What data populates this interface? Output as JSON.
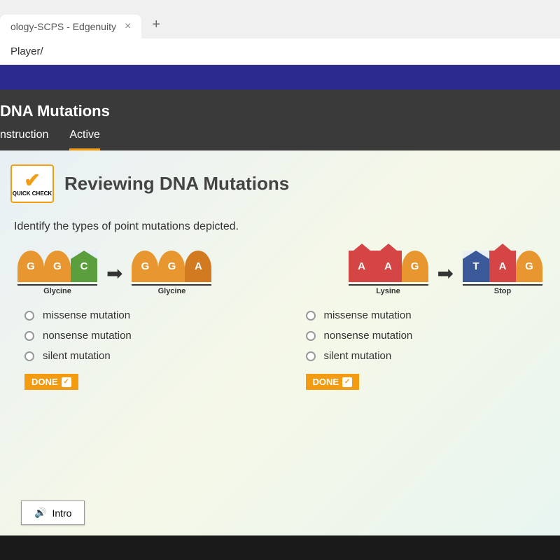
{
  "browser": {
    "tab_title": "ology-SCPS - Edgenuity",
    "url": "Player/"
  },
  "header": {
    "title": "DNA Mutations",
    "tabs": [
      "nstruction",
      "Active"
    ]
  },
  "section": {
    "badge_label": "QUICK CHECK",
    "title": "Reviewing DNA Mutations",
    "question": "Identify the types of point mutations depicted."
  },
  "colors": {
    "orange": "#e8962f",
    "green": "#5a9e3d",
    "red": "#d64545",
    "blue": "#3b5998",
    "dark_orange": "#d17a1f"
  },
  "left_codon": {
    "before": [
      {
        "letter": "G",
        "color": "#e8962f",
        "shape": "arch"
      },
      {
        "letter": "G",
        "color": "#e8962f",
        "shape": "arch"
      },
      {
        "letter": "C",
        "color": "#5a9e3d",
        "shape": "cut"
      }
    ],
    "before_label": "Glycine",
    "after": [
      {
        "letter": "G",
        "color": "#e8962f",
        "shape": "arch"
      },
      {
        "letter": "G",
        "color": "#e8962f",
        "shape": "arch"
      },
      {
        "letter": "A",
        "color": "#d17a1f",
        "shape": "arch"
      }
    ],
    "after_label": "Glycine"
  },
  "right_codon": {
    "before": [
      {
        "letter": "A",
        "color": "#d64545",
        "shape": "notch"
      },
      {
        "letter": "A",
        "color": "#d64545",
        "shape": "notch"
      },
      {
        "letter": "G",
        "color": "#e8962f",
        "shape": "arch"
      }
    ],
    "before_label": "Lysine",
    "after": [
      {
        "letter": "T",
        "color": "#3b5998",
        "shape": "cut"
      },
      {
        "letter": "A",
        "color": "#d64545",
        "shape": "notch"
      },
      {
        "letter": "G",
        "color": "#e8962f",
        "shape": "arch"
      }
    ],
    "after_label": "Stop"
  },
  "options": {
    "left": [
      "missense mutation",
      "nonsense mutation",
      "silent mutation"
    ],
    "right": [
      "missense mutation",
      "nonsense mutation",
      "silent mutation"
    ]
  },
  "buttons": {
    "done": "DONE",
    "intro": "Intro"
  }
}
